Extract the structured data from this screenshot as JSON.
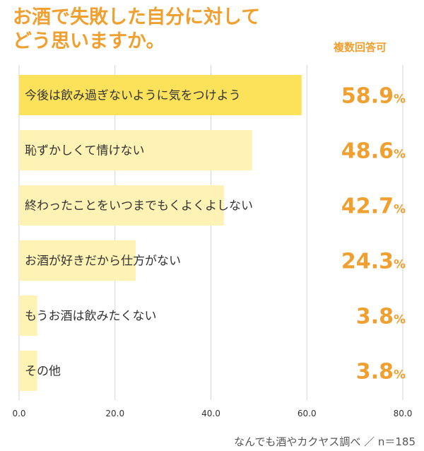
{
  "title": "お酒で失敗した自分に対して\nどう思いますか。",
  "note": "複数回答可",
  "source": "なんでも酒やカクヤス調べ ／ n＝185",
  "colors": {
    "accent": "#f0a030",
    "bar_top": "#fce25a",
    "bar": "#fef3b5",
    "grid": "#d6d6d6",
    "label": "#333333"
  },
  "chart_data": {
    "type": "bar",
    "orientation": "horizontal",
    "categories": [
      "今後は飲み過ぎないように気をつけよう",
      "恥ずかしくて情けない",
      "終わったことをいつまでもくよくよしない",
      "お酒が好きだから仕方がない",
      "もうお酒は飲みたくない",
      "その他"
    ],
    "values": [
      58.9,
      48.6,
      42.7,
      24.3,
      3.8,
      3.8
    ],
    "value_labels": [
      "58.9",
      "48.6",
      "42.7",
      "24.3",
      "3.8",
      "3.8"
    ],
    "unit": "%",
    "xlim": [
      0,
      80
    ],
    "xticks": [
      0,
      20,
      40,
      60,
      80
    ],
    "xtick_labels": [
      "0.0",
      "20.0",
      "40.0",
      "60.0",
      "80.0"
    ],
    "grid": true,
    "highlight_index": 0
  }
}
